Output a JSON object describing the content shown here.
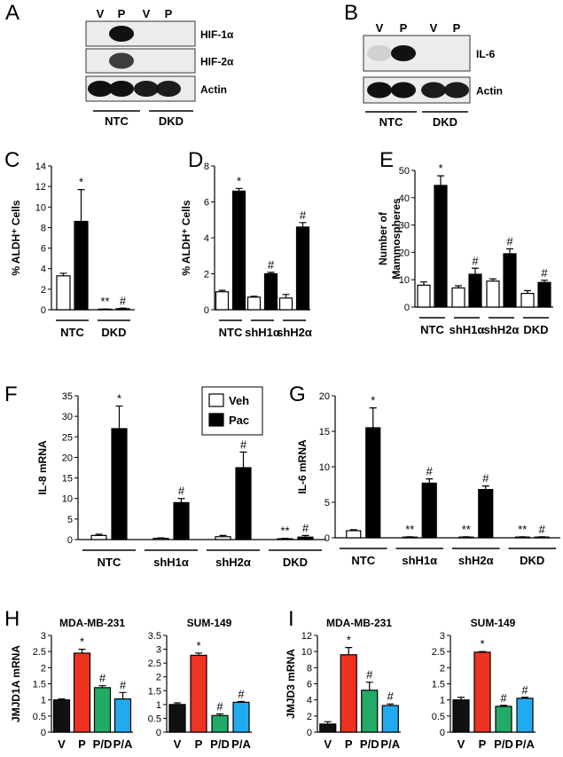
{
  "blots": [
    {
      "panel": "A",
      "lanes": [
        "V",
        "P",
        "V",
        "P"
      ],
      "rows": [
        "HIF-1α",
        "HIF-2α",
        "Actin"
      ],
      "groups": [
        "NTC",
        "DKD"
      ]
    },
    {
      "panel": "B",
      "lanes": [
        "V",
        "P",
        "V",
        "P"
      ],
      "rows": [
        "IL-6",
        "Actin"
      ],
      "groups": [
        "NTC",
        "DKD"
      ]
    }
  ],
  "chart_data": [
    {
      "type": "bar",
      "panel": "C",
      "ylabel": "% ALDH⁺ Cells",
      "categories": [
        "NTC",
        "DKD"
      ],
      "ylim": [
        0,
        14
      ],
      "yticks": [
        0,
        2,
        4,
        6,
        8,
        10,
        12,
        14
      ],
      "series": [
        {
          "color": "#ffffff",
          "values": [
            3.3,
            0.05
          ],
          "errors": [
            0.25,
            0.02
          ],
          "sig": [
            null,
            "**"
          ]
        },
        {
          "color": "#000000",
          "values": [
            8.6,
            0.1
          ],
          "errors": [
            3.1,
            0.05
          ],
          "sig": [
            "*",
            "#"
          ]
        }
      ]
    },
    {
      "type": "bar",
      "panel": "D",
      "ylabel": "% ALDH⁺ Cells",
      "categories": [
        "NTC",
        "shH1α",
        "shH2α"
      ],
      "ylim": [
        0,
        8
      ],
      "yticks": [
        0,
        2,
        4,
        6,
        8
      ],
      "series": [
        {
          "color": "#ffffff",
          "values": [
            1.0,
            0.7,
            0.65
          ],
          "errors": [
            0.08,
            0.05,
            0.2
          ],
          "sig": [
            null,
            null,
            null
          ]
        },
        {
          "color": "#000000",
          "values": [
            6.6,
            2.0,
            4.6
          ],
          "errors": [
            0.15,
            0.08,
            0.25
          ],
          "sig": [
            "*",
            "#",
            "#"
          ]
        }
      ]
    },
    {
      "type": "bar",
      "panel": "E",
      "ylabel": [
        "Number of",
        "Mammospheres"
      ],
      "categories": [
        "NTC",
        "shH1α",
        "shH2α",
        "DKD"
      ],
      "ylim": [
        0,
        50
      ],
      "yticks": [
        0,
        10,
        20,
        30,
        40,
        50
      ],
      "series": [
        {
          "color": "#ffffff",
          "values": [
            8,
            7,
            9.5,
            5
          ],
          "errors": [
            1.2,
            0.8,
            0.8,
            1
          ],
          "sig": [
            null,
            null,
            null,
            null
          ]
        },
        {
          "color": "#000000",
          "values": [
            44.5,
            12,
            19.5,
            9
          ],
          "errors": [
            3.5,
            2.2,
            1.8,
            0.8
          ],
          "sig": [
            "*",
            "#",
            "#",
            "#"
          ]
        }
      ]
    },
    {
      "type": "bar",
      "panel": "F",
      "ylabel": "IL-8 mRNA",
      "categories": [
        "NTC",
        "shH1α",
        "shH2α",
        "DKD"
      ],
      "ylim": [
        0,
        35
      ],
      "yticks": [
        0,
        5,
        10,
        15,
        20,
        25,
        30,
        35
      ],
      "legend": "top",
      "series": [
        {
          "name": "Veh",
          "color": "#ffffff",
          "values": [
            1,
            0.3,
            0.7,
            0.2
          ],
          "errors": [
            0.3,
            0.1,
            0.3,
            0.1
          ],
          "sig": [
            null,
            null,
            null,
            "**"
          ]
        },
        {
          "name": "Pac",
          "color": "#000000",
          "values": [
            27,
            9,
            17.5,
            0.6
          ],
          "errors": [
            5.5,
            1,
            3.8,
            0.4
          ],
          "sig": [
            "*",
            "#",
            "#",
            "#"
          ]
        }
      ]
    },
    {
      "type": "bar",
      "panel": "G",
      "ylabel": "IL-6 mRNA",
      "categories": [
        "NTC",
        "shH1α",
        "shH2α",
        "DKD"
      ],
      "ylim": [
        0,
        20
      ],
      "yticks": [
        0,
        5,
        10,
        15,
        20
      ],
      "series": [
        {
          "color": "#ffffff",
          "values": [
            1,
            0.1,
            0.1,
            0.1
          ],
          "errors": [
            0.15,
            0.05,
            0.05,
            0.05
          ],
          "sig": [
            null,
            "**",
            "**",
            "**"
          ]
        },
        {
          "color": "#000000",
          "values": [
            15.5,
            7.7,
            6.8,
            0.1
          ],
          "errors": [
            2.8,
            0.6,
            0.5,
            0.05
          ],
          "sig": [
            "*",
            "#",
            "#",
            "#"
          ]
        }
      ]
    },
    {
      "type": "bar",
      "panel": "H",
      "title": "MDA-MB-231",
      "ylabel": "JMJD1A mRNA",
      "categories": [
        "V",
        "P",
        "P/D",
        "P/A"
      ],
      "ylim": [
        0,
        3
      ],
      "yticks": [
        0,
        0.5,
        1,
        1.5,
        2,
        2.5,
        3
      ],
      "values": [
        1.0,
        2.45,
        1.38,
        1.03
      ],
      "errors": [
        0.03,
        0.12,
        0.06,
        0.2
      ],
      "sig": [
        null,
        "*",
        "#",
        "#"
      ],
      "colors": [
        "#111111",
        "#ee3322",
        "#22aa66",
        "#22aaee"
      ]
    },
    {
      "type": "bar",
      "title": "SUM-149",
      "categories": [
        "V",
        "P",
        "P/D",
        "P/A"
      ],
      "ylim": [
        0,
        3.5
      ],
      "yticks": [
        0,
        0.5,
        1,
        1.5,
        2,
        2.5,
        3,
        3.5
      ],
      "values": [
        1.0,
        2.78,
        0.6,
        1.08
      ],
      "errors": [
        0.06,
        0.08,
        0.06,
        0.03
      ],
      "sig": [
        null,
        "*",
        "#",
        "#"
      ],
      "colors": [
        "#111111",
        "#ee3322",
        "#22aa66",
        "#22aaee"
      ]
    },
    {
      "type": "bar",
      "panel": "I",
      "title": "MDA-MB-231",
      "ylabel": "JMJD3 mRNA",
      "categories": [
        "V",
        "P",
        "P/D",
        "P/A"
      ],
      "ylim": [
        0,
        12
      ],
      "yticks": [
        0,
        2,
        4,
        6,
        8,
        10,
        12
      ],
      "values": [
        1.0,
        9.6,
        5.2,
        3.3
      ],
      "errors": [
        0.3,
        0.9,
        1.0,
        0.2
      ],
      "sig": [
        null,
        "*",
        "#",
        "#"
      ],
      "colors": [
        "#111111",
        "#ee3322",
        "#22aa66",
        "#22aaee"
      ]
    },
    {
      "type": "bar",
      "title": "SUM-149",
      "categories": [
        "V",
        "P",
        "P/D",
        "P/A"
      ],
      "ylim": [
        0,
        3
      ],
      "yticks": [
        0,
        0.5,
        1,
        1.5,
        2,
        2.5,
        3
      ],
      "values": [
        1.0,
        2.48,
        0.8,
        1.05
      ],
      "errors": [
        0.08,
        0.02,
        0.03,
        0.03
      ],
      "sig": [
        null,
        "*",
        "#",
        "#"
      ],
      "colors": [
        "#111111",
        "#ee3322",
        "#22aa66",
        "#22aaee"
      ]
    }
  ]
}
